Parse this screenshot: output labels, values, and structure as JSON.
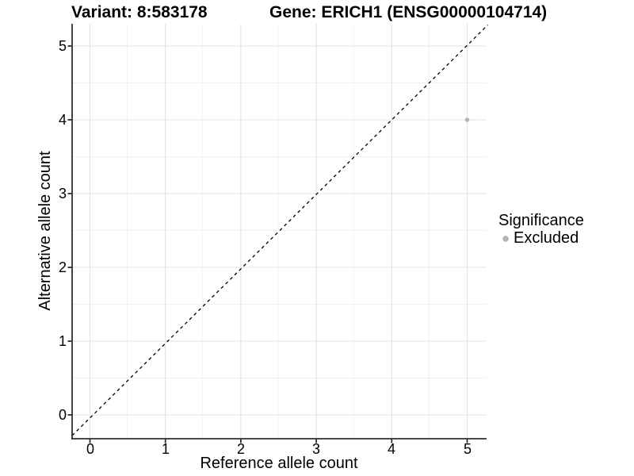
{
  "title": {
    "variant": "Variant: 8:583178",
    "gene": "Gene: ERICH1 (ENSG00000104714)"
  },
  "axes": {
    "x": {
      "label": "Reference allele count",
      "ticks": [
        "0",
        "1",
        "2",
        "3",
        "4",
        "5"
      ]
    },
    "y": {
      "label": "Alternative allele count",
      "ticks": [
        "0",
        "1",
        "2",
        "3",
        "4",
        "5"
      ]
    }
  },
  "legend": {
    "title": "Significance",
    "items": [
      {
        "label": "Excluded",
        "color": "#b3b3b3",
        "marker": "circle-icon"
      }
    ]
  },
  "colors": {
    "background": "#ffffff",
    "grid_major": "#e3e3e3",
    "grid_minor": "#f0f0f0",
    "axis": "#2f2f2f",
    "reference_line": "#000000",
    "text": "#000000"
  },
  "chart_data": {
    "type": "scatter",
    "title": "Variant: 8:583178 — Gene: ERICH1 (ENSG00000104714)",
    "xlabel": "Reference allele count",
    "ylabel": "Alternative allele count",
    "xlim": [
      -0.25,
      5.25
    ],
    "ylim": [
      -0.25,
      5.25
    ],
    "x_ticks": [
      0,
      1,
      2,
      3,
      4,
      5
    ],
    "y_ticks": [
      0,
      1,
      2,
      3,
      4,
      5
    ],
    "grid": "major+minor",
    "legend_position": "right",
    "series": [
      {
        "name": "Excluded",
        "color": "#b3b3b3",
        "points": [
          [
            5,
            4
          ]
        ]
      }
    ],
    "reference_line": {
      "type": "identity",
      "slope": 1,
      "intercept": 0,
      "style": "dashed",
      "color": "#000000"
    }
  }
}
